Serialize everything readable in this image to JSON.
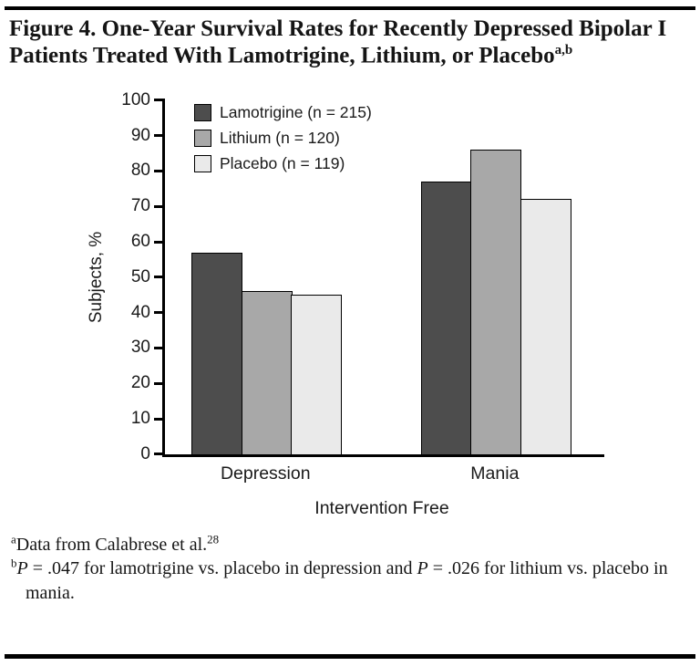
{
  "header": {
    "title": "Figure 4. One-Year Survival Rates for Recently Depressed Bipolar I Patients Treated With Lamotrigine, Lithium, or Placebo",
    "title_superscript": "a,b"
  },
  "chart_data": {
    "type": "bar",
    "title": "",
    "categories": [
      "Depression",
      "Mania"
    ],
    "series": [
      {
        "name": "Lamotrigine (n = 215)",
        "color": "#4d4d4d",
        "values": [
          57,
          77
        ]
      },
      {
        "name": "Lithium (n = 120)",
        "color": "#a8a8a8",
        "values": [
          46,
          86
        ]
      },
      {
        "name": "Placebo (n = 119)",
        "color": "#eaeaea",
        "values": [
          45,
          72
        ]
      }
    ],
    "xlabel": "Intervention Free",
    "ylabel": "Subjects, %",
    "ylim": [
      0,
      100
    ],
    "yticks": [
      0,
      10,
      20,
      30,
      40,
      50,
      60,
      70,
      80,
      90,
      100
    ],
    "grid": false,
    "legend_position": "top-left-inside",
    "bar_outline_color": "#000000",
    "axis_color": "#000000"
  },
  "footnotes": {
    "a": {
      "marker": "a",
      "text": "Data from Calabrese et al.",
      "ref": "28"
    },
    "b": {
      "marker": "b",
      "parts": [
        "P",
        " = .047 for lamotrigine vs. placebo in depression and ",
        "P",
        " = .026 for lithium vs. placebo in mania."
      ]
    }
  }
}
